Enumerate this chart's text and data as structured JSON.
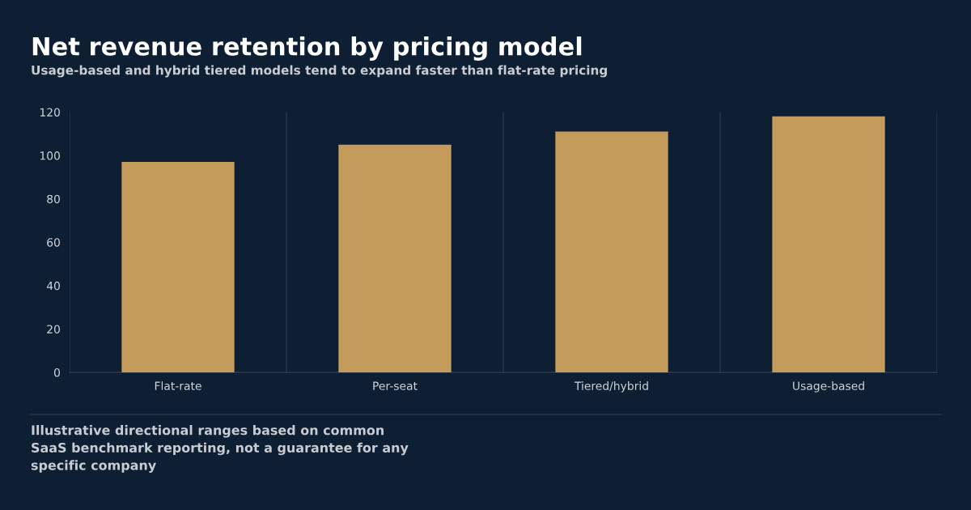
{
  "chart_data": {
    "type": "bar",
    "title": "Net revenue retention by pricing model",
    "subtitle": "Usage-based and hybrid tiered models tend to expand faster than flat-rate pricing",
    "categories": [
      "Flat-rate",
      "Per-seat",
      "Tiered/hybrid",
      "Usage-based"
    ],
    "values": [
      97,
      105,
      111,
      118
    ],
    "color": "#c49b5a",
    "ylim": [
      0,
      120
    ],
    "yticks": [
      0,
      20,
      40,
      60,
      80,
      100,
      120
    ],
    "grid": "x",
    "legend": false,
    "annotations": [
      "Illustrative directional ranges based on common\nSaaS benchmark reporting, not a guarantee for any\nspecific company"
    ]
  }
}
